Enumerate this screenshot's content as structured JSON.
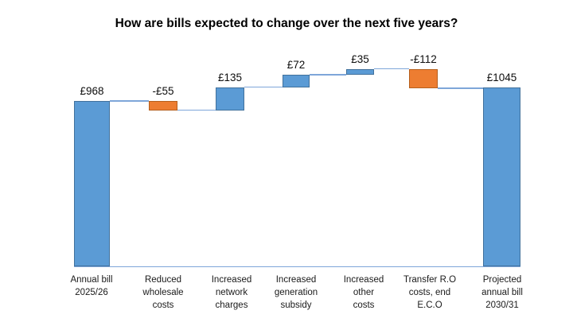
{
  "chart_data": {
    "type": "bar",
    "subtype": "waterfall",
    "title": "How are bills expected to change over the next five years?",
    "steps": [
      {
        "category": "Annual bill\n2025/26",
        "label": "£968",
        "value": 968,
        "kind": "total",
        "running_total": 968
      },
      {
        "category": "Reduced\nwholesale\ncosts",
        "label": "-£55",
        "value": -55,
        "kind": "decrease",
        "running_total": 913
      },
      {
        "category": "Increased\nnetwork\ncharges",
        "label": "£135",
        "value": 135,
        "kind": "increase",
        "running_total": 1048
      },
      {
        "category": "Increased\ngeneration\nsubsidy",
        "label": "£72",
        "value": 72,
        "kind": "increase",
        "running_total": 1120
      },
      {
        "category": "Increased\nother\ncosts",
        "label": "£35",
        "value": 35,
        "kind": "increase",
        "running_total": 1155
      },
      {
        "category": "Transfer R.O\ncosts, end\nE.C.O",
        "label": "-£112",
        "value": -112,
        "kind": "decrease",
        "running_total": 1043
      },
      {
        "category": "Projected\nannual bill\n2030/31",
        "label": "£1045",
        "value": 1045,
        "kind": "total",
        "running_total": 1045
      }
    ],
    "ylim": [
      0,
      1155
    ],
    "layout_hints": {
      "grid": false,
      "legend": false,
      "y_axis_visible": false,
      "baseline_axis_visible": true,
      "data_labels": "above bars",
      "category_labels": "below baseline"
    },
    "colors": {
      "increase_fill": "#5b9bd5",
      "increase_border": "#41719c",
      "decrease_fill": "#ed7d31",
      "decrease_border": "#b55f1d",
      "connector": "#7ea6d9",
      "axis": "#7ea6d9",
      "background": "#ffffff",
      "title_text": "#000000",
      "label_text": "#1a1a1a"
    }
  }
}
